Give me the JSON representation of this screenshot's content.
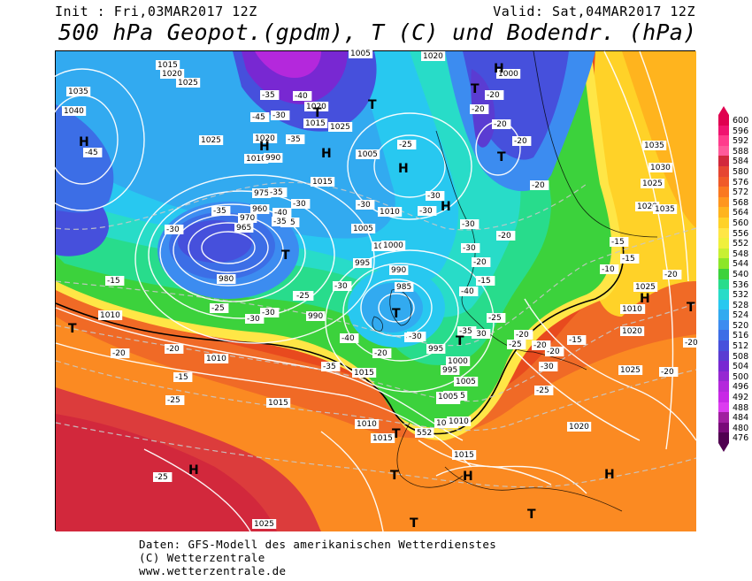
{
  "header": {
    "init": "Init : Fri,03MAR2017 12Z",
    "valid": "Valid: Sat,04MAR2017 12Z",
    "title": "500 hPa Geopot.(gpdm), T (C) und Bodendr. (hPa)"
  },
  "colorbar": {
    "labels": [
      "600",
      "596",
      "592",
      "588",
      "584",
      "580",
      "576",
      "572",
      "568",
      "564",
      "560",
      "556",
      "552",
      "548",
      "544",
      "540",
      "536",
      "532",
      "528",
      "524",
      "520",
      "516",
      "512",
      "508",
      "504",
      "500",
      "496",
      "492",
      "488",
      "484",
      "480",
      "476"
    ],
    "colors": [
      "#e00050",
      "#f01470",
      "#ff3c8c",
      "#ff5a9a",
      "#d2283c",
      "#e64632",
      "#f05a28",
      "#fa7820",
      "#ff961e",
      "#ffb41e",
      "#ffd228",
      "#ffe646",
      "#f0f03c",
      "#c8f032",
      "#8ce628",
      "#3cd23c",
      "#28dc8c",
      "#28dcc8",
      "#28c8f0",
      "#32aaf0",
      "#3c8cf0",
      "#3c6ee6",
      "#4650dc",
      "#5a3cd2",
      "#7828d2",
      "#9628d2",
      "#b428dc",
      "#c828e6",
      "#dc3cf0",
      "#a01ea0",
      "#780a78",
      "#500050"
    ]
  },
  "map": {
    "pressure_labels": [
      "1005",
      "1020",
      "1015",
      "1020",
      "1025",
      "1035",
      "1040",
      "1025",
      "1020",
      "1010",
      "1020",
      "1015",
      "1025",
      "1005",
      "1000",
      "1035",
      "1030",
      "1025",
      "1020",
      "1035",
      "1010",
      "1010",
      "1000",
      "1005",
      "1000",
      "995",
      "990",
      "980",
      "985",
      "990",
      "995",
      "1010",
      "1015",
      "1015",
      "1010",
      "1005",
      "1015",
      "1005",
      "1000",
      "995",
      "1005",
      "1000",
      "1010",
      "1025",
      "1020",
      "1015",
      "1010",
      "1015",
      "1020",
      "1025",
      "1015",
      "1025",
      "1015",
      "990",
      "970",
      "975",
      "960",
      "965",
      "985"
    ],
    "temperature_labels": [
      "-45",
      "-35",
      "-40",
      "-45",
      "-35",
      "-30",
      "-35",
      "-30",
      "-35",
      "-30",
      "-40",
      "-35",
      "-25",
      "-30",
      "-30",
      "-30",
      "-25",
      "-35",
      "-40",
      "-35",
      "-30",
      "-25",
      "-20",
      "-25",
      "-20",
      "-30",
      "-25",
      "-20",
      "-15",
      "-15",
      "-20",
      "-20",
      "-20",
      "-15",
      "-10",
      "-20",
      "-30",
      "-30",
      "-25",
      "-20",
      "-20",
      "-20",
      "-20",
      "-20",
      "-15",
      "-20",
      "-20",
      "-15",
      "-25",
      "-25",
      "-20",
      "-30",
      "-35",
      "-40",
      "-15",
      "-20",
      "-30",
      "-30",
      "-35",
      "-30"
    ],
    "centers_h": [
      "H",
      "H",
      "H",
      "H",
      "H",
      "H",
      "H",
      "H",
      "H",
      "H"
    ],
    "centers_t": [
      "T",
      "T",
      "T",
      "T",
      "T",
      "T",
      "T",
      "T",
      "T",
      "T",
      "T",
      "T",
      "T"
    ],
    "label_552": "552"
  },
  "footer": {
    "line1": "Daten: GFS-Modell des amerikanischen Wetterdienstes",
    "line2": "(C) Wetterzentrale",
    "line3": "www.wetterzentrale.de"
  }
}
